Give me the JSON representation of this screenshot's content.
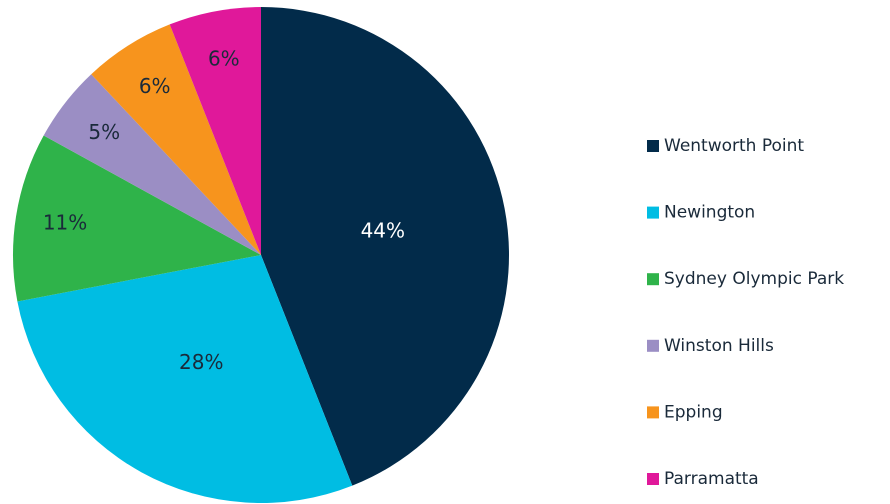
{
  "chart_data": {
    "type": "pie",
    "categories": [
      "Wentworth Point",
      "Newington",
      "Sydney Olympic Park",
      "Winston Hills",
      "Epping",
      "Parramatta"
    ],
    "values": [
      44,
      28,
      11,
      5,
      6,
      6
    ],
    "value_labels": [
      "44%",
      "28%",
      "11%",
      "5%",
      "6%",
      "6%"
    ],
    "colors": [
      "#022b4a",
      "#00bde3",
      "#2fb34a",
      "#9b8ec4",
      "#f7941d",
      "#e0189a"
    ],
    "legend": "right"
  }
}
